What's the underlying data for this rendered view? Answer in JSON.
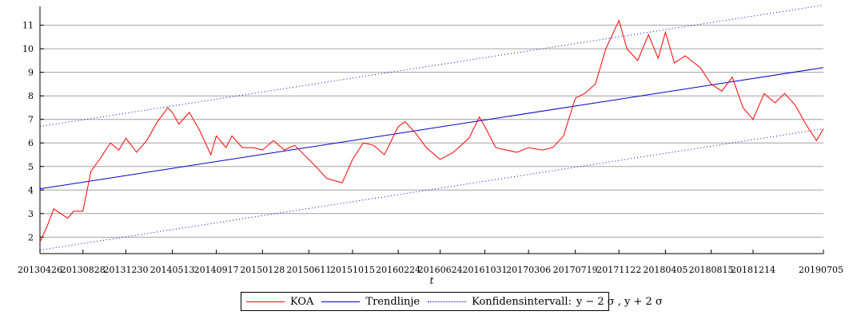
{
  "chart_data": {
    "type": "line",
    "xlabel": "t",
    "ylabel": "",
    "x_ticks": [
      "20130426",
      "20130828",
      "20131230",
      "20140513",
      "20140917",
      "20150128",
      "20150611",
      "20151015",
      "20160224",
      "20160624",
      "20161031",
      "20170306",
      "20170719",
      "20171122",
      "20180405",
      "20180815",
      "20181214",
      "20190705"
    ],
    "y_ticks": [
      2,
      3,
      4,
      5,
      6,
      7,
      8,
      9,
      10,
      11
    ],
    "ylim": [
      1.3,
      11.8
    ],
    "xlim": [
      "20130426",
      "20190705"
    ],
    "grid": "horizontal",
    "legend_position": "bottom-center",
    "colors": {
      "series": "#ff0000",
      "trend": "#0000cc",
      "interval": "#0000cc"
    },
    "series": [
      {
        "name": "KOA",
        "style": "solid",
        "color": "#ff0000",
        "x": [
          "20130426",
          "20130515",
          "20130605",
          "20130625",
          "20130715",
          "20130801",
          "20130828",
          "20130920",
          "20131015",
          "20131115",
          "20131210",
          "20131230",
          "20140130",
          "20140228",
          "20140331",
          "20140430",
          "20140513",
          "20140601",
          "20140701",
          "20140801",
          "20140901",
          "20140917",
          "20141015",
          "20141101",
          "20141201",
          "20150101",
          "20150128",
          "20150301",
          "20150401",
          "20150501",
          "20150611",
          "20150701",
          "20150801",
          "20150915",
          "20151015",
          "20151115",
          "20151215",
          "20160115",
          "20160224",
          "20160315",
          "20160415",
          "20160515",
          "20160624",
          "20160801",
          "20160915",
          "20161015",
          "20161031",
          "20161201",
          "20170101",
          "20170201",
          "20170306",
          "20170415",
          "20170515",
          "20170615",
          "20170719",
          "20170815",
          "20170915",
          "20171015",
          "20171122",
          "20171215",
          "20180115",
          "20180215",
          "20180315",
          "20180405",
          "20180501",
          "20180601",
          "20180715",
          "20180815",
          "20180915",
          "20181015",
          "20181115",
          "20181214",
          "20190115",
          "20190215",
          "20190315",
          "20190415",
          "20190515",
          "20190615",
          "20190705"
        ],
        "y": [
          1.8,
          2.4,
          3.2,
          3.0,
          2.8,
          3.1,
          3.1,
          4.8,
          5.3,
          6.0,
          5.7,
          6.2,
          5.6,
          6.1,
          6.9,
          7.5,
          7.3,
          6.8,
          7.3,
          6.5,
          5.5,
          6.3,
          5.8,
          6.3,
          5.8,
          5.8,
          5.7,
          6.1,
          5.7,
          5.9,
          5.3,
          5.0,
          4.5,
          4.3,
          5.3,
          6.0,
          5.9,
          5.5,
          6.7,
          6.9,
          6.4,
          5.8,
          5.3,
          5.6,
          6.2,
          7.1,
          6.7,
          5.8,
          5.7,
          5.6,
          5.8,
          5.7,
          5.8,
          6.3,
          7.9,
          8.1,
          8.5,
          10.0,
          11.2,
          10.0,
          9.5,
          10.6,
          9.6,
          10.7,
          9.4,
          9.7,
          9.2,
          8.5,
          8.2,
          8.8,
          7.5,
          7.0,
          8.1,
          7.7,
          8.1,
          7.6,
          6.8,
          6.1,
          6.6
        ]
      },
      {
        "name": "Trendlinje",
        "style": "solid",
        "color": "#0000cc",
        "x": [
          "20130426",
          "20190705"
        ],
        "y": [
          4.05,
          9.2
        ]
      },
      {
        "name": "Konfidensintervall:",
        "style": "dotted",
        "color": "#0000cc",
        "x": [
          "20130426",
          "20190705"
        ],
        "y": [
          6.7,
          11.85
        ]
      },
      {
        "name": "Konfidensintervall:",
        "style": "dotted",
        "color": "#0000cc",
        "x": [
          "20130426",
          "20190705"
        ],
        "y": [
          1.45,
          6.6
        ]
      }
    ]
  },
  "legend": {
    "koa_label": "KOA",
    "trend_label": "Trendlinje",
    "interval_label": "Konfidensintervall:",
    "interval_math": "y − 2 σ , y + 2 σ"
  }
}
